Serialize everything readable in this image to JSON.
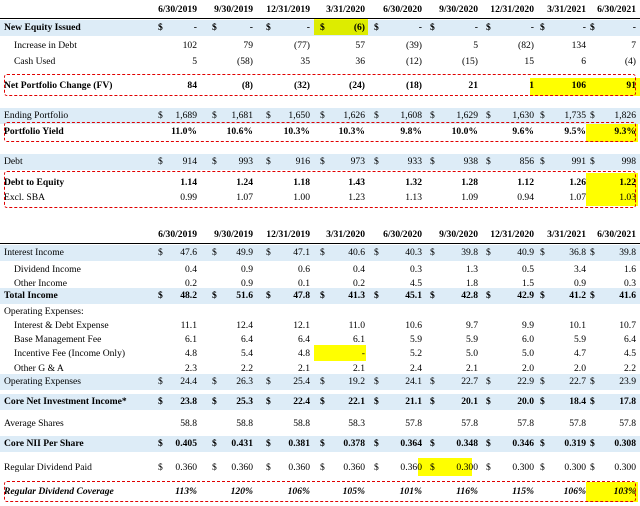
{
  "headers": [
    "6/30/2019",
    "9/30/2019",
    "12/31/2019",
    "3/31/2020",
    "6/30/2020",
    "9/30/2020",
    "12/31/2020",
    "3/31/2021",
    "6/30/2021"
  ],
  "table1": [
    {
      "label": "New Equity Issued",
      "bold": true,
      "blue": true,
      "dollar": true,
      "values": [
        "-",
        "-",
        "-",
        "(6)",
        "-",
        "-",
        "-",
        "-",
        "-"
      ]
    },
    {
      "label": "Increase in Debt",
      "indent": true,
      "values": [
        "102",
        "79",
        "(77)",
        "57",
        "(39)",
        "5",
        "(82)",
        "134",
        "7"
      ]
    },
    {
      "label": "Cash Used",
      "indent": true,
      "values": [
        "5",
        "(58)",
        "35",
        "36",
        "(12)",
        "(15)",
        "15",
        "6",
        "(4)"
      ]
    },
    {
      "label": "Net Portfolio Change (FV)",
      "bold": true,
      "values": [
        "84",
        "(8)",
        "(32)",
        "(24)",
        "(18)",
        "21",
        "1",
        "106",
        "91"
      ]
    },
    {
      "label": "Ending Portfolio",
      "blue": true,
      "dollar": true,
      "values": [
        "1,689",
        "1,681",
        "1,650",
        "1,626",
        "1,608",
        "1,629",
        "1,630",
        "1,735",
        "1,826"
      ]
    },
    {
      "label": "Portfolio Yield",
      "bold": true,
      "values": [
        "11.0%",
        "10.6%",
        "10.3%",
        "10.3%",
        "9.8%",
        "10.0%",
        "9.6%",
        "9.5%",
        "9.3%"
      ]
    },
    {
      "label": "Debt",
      "blue": true,
      "dollar": true,
      "values": [
        "914",
        "993",
        "916",
        "973",
        "933",
        "938",
        "856",
        "991",
        "998"
      ]
    },
    {
      "label": "Debt to Equity",
      "bold": true,
      "values": [
        "1.14",
        "1.24",
        "1.18",
        "1.43",
        "1.32",
        "1.28",
        "1.12",
        "1.26",
        "1.22"
      ]
    },
    {
      "label": "Excl. SBA",
      "values": [
        "0.99",
        "1.07",
        "1.00",
        "1.23",
        "1.13",
        "1.09",
        "0.94",
        "1.07",
        "1.03"
      ]
    }
  ],
  "table2": [
    {
      "label": "Interest Income",
      "blue": true,
      "dollar": true,
      "values": [
        "47.6",
        "49.9",
        "47.1",
        "40.6",
        "40.3",
        "39.8",
        "40.9",
        "36.8",
        "39.8"
      ]
    },
    {
      "label": "Dividend Income",
      "indent": true,
      "values": [
        "0.4",
        "0.9",
        "0.6",
        "0.4",
        "0.3",
        "1.3",
        "0.5",
        "3.4",
        "1.6"
      ]
    },
    {
      "label": "Other Income",
      "indent": true,
      "values": [
        "0.2",
        "0.9",
        "0.1",
        "0.2",
        "4.5",
        "1.8",
        "1.5",
        "0.9",
        "0.3"
      ]
    },
    {
      "label": "Total Income",
      "bold": true,
      "blue": true,
      "dollar": true,
      "values": [
        "48.2",
        "51.6",
        "47.8",
        "41.3",
        "45.1",
        "42.8",
        "42.9",
        "41.2",
        "41.6"
      ]
    },
    {
      "label": "Operating Expenses:",
      "values": [
        "",
        "",
        "",
        "",
        "",
        "",
        "",
        "",
        ""
      ]
    },
    {
      "label": "Interest & Debt Expense",
      "indent": true,
      "values": [
        "11.1",
        "12.4",
        "12.1",
        "11.0",
        "10.6",
        "9.7",
        "9.9",
        "10.1",
        "10.7"
      ]
    },
    {
      "label": "Base Management Fee",
      "indent": true,
      "values": [
        "6.1",
        "6.4",
        "6.4",
        "6.1",
        "5.9",
        "5.9",
        "6.0",
        "5.9",
        "6.4"
      ]
    },
    {
      "label": "Incentive Fee (Income Only)",
      "indent": true,
      "values": [
        "4.8",
        "5.4",
        "4.8",
        "-",
        "5.2",
        "5.0",
        "5.0",
        "4.7",
        "4.5"
      ]
    },
    {
      "label": "Other G & A",
      "indent": true,
      "values": [
        "2.3",
        "2.2",
        "2.1",
        "2.1",
        "2.4",
        "2.1",
        "2.0",
        "2.0",
        "2.2"
      ]
    },
    {
      "label": "Operating Expenses",
      "blue": true,
      "dollar": true,
      "values": [
        "24.4",
        "26.3",
        "25.4",
        "19.2",
        "24.1",
        "22.7",
        "22.9",
        "22.7",
        "23.9"
      ]
    },
    {
      "label": "Core Net Investment Income*",
      "bold": true,
      "blue": true,
      "dollar": true,
      "values": [
        "23.8",
        "25.3",
        "22.4",
        "22.1",
        "21.1",
        "20.1",
        "20.0",
        "18.4",
        "17.8"
      ]
    },
    {
      "label": "Average Shares",
      "values": [
        "58.8",
        "58.8",
        "58.8",
        "58.3",
        "57.8",
        "57.8",
        "57.8",
        "57.8",
        "57.8"
      ]
    },
    {
      "label": "Core NII Per Share",
      "bold": true,
      "blue": true,
      "dollar": true,
      "values": [
        "0.405",
        "0.431",
        "0.381",
        "0.378",
        "0.364",
        "0.348",
        "0.346",
        "0.319",
        "0.308"
      ]
    },
    {
      "label": "Regular Dividend Paid",
      "dollar": true,
      "values": [
        "0.360",
        "0.360",
        "0.360",
        "0.360",
        "0.360",
        "0.300",
        "0.300",
        "0.300",
        "0.300"
      ]
    },
    {
      "label": "Regular Dividend Coverage",
      "bold": true,
      "italic": true,
      "values": [
        "113%",
        "120%",
        "106%",
        "105%",
        "101%",
        "116%",
        "115%",
        "106%",
        "103%"
      ]
    }
  ]
}
